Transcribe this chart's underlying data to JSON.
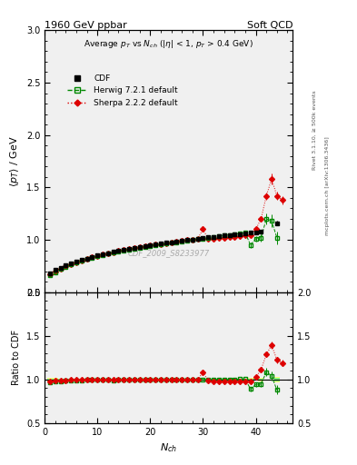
{
  "title_left": "1960 GeV ppbar",
  "title_right": "Soft QCD",
  "plot_title": "Average $p_T$ vs $N_{ch}$ ($|\\eta|$ < 1, $p_T$ > 0.4 GeV)",
  "xlabel": "$N_{ch}$",
  "ylabel_main": "$\\langle p_T \\rangle$ / GeV",
  "ylabel_ratio": "Ratio to CDF",
  "watermark": "CDF_2009_S8233977",
  "right_label1": "Rivet 3.1.10, ≥ 500k events",
  "right_label2": "mcplots.cern.ch [arXiv:1306.3436]",
  "xlim": [
    0,
    47
  ],
  "ylim_main": [
    0.5,
    3.0
  ],
  "ylim_ratio": [
    0.5,
    2.0
  ],
  "xticks": [
    0,
    10,
    20,
    30,
    40
  ],
  "yticks_main": [
    0.5,
    1.0,
    1.5,
    2.0,
    2.5,
    3.0
  ],
  "yticks_ratio": [
    0.5,
    1.0,
    1.5,
    2.0
  ],
  "cdf_x": [
    1,
    2,
    3,
    4,
    5,
    6,
    7,
    8,
    9,
    10,
    11,
    12,
    13,
    14,
    15,
    16,
    17,
    18,
    19,
    20,
    21,
    22,
    23,
    24,
    25,
    26,
    27,
    28,
    29,
    30,
    31,
    32,
    33,
    34,
    35,
    36,
    37,
    38,
    39,
    40,
    41,
    44
  ],
  "cdf_y": [
    0.683,
    0.71,
    0.733,
    0.754,
    0.773,
    0.791,
    0.807,
    0.822,
    0.836,
    0.849,
    0.861,
    0.873,
    0.884,
    0.894,
    0.904,
    0.913,
    0.922,
    0.931,
    0.939,
    0.947,
    0.955,
    0.963,
    0.97,
    0.977,
    0.984,
    0.991,
    0.998,
    1.004,
    1.01,
    1.016,
    1.022,
    1.028,
    1.034,
    1.04,
    1.045,
    1.051,
    1.056,
    1.062,
    1.067,
    1.072,
    1.077,
    1.16
  ],
  "cdf_yerr": [
    0.008,
    0.006,
    0.005,
    0.004,
    0.004,
    0.003,
    0.003,
    0.003,
    0.003,
    0.003,
    0.003,
    0.003,
    0.003,
    0.003,
    0.003,
    0.003,
    0.003,
    0.003,
    0.003,
    0.003,
    0.003,
    0.003,
    0.003,
    0.003,
    0.003,
    0.003,
    0.003,
    0.003,
    0.004,
    0.004,
    0.004,
    0.004,
    0.004,
    0.005,
    0.005,
    0.006,
    0.006,
    0.007,
    0.008,
    0.009,
    0.01,
    0.02
  ],
  "herwig_x": [
    1,
    2,
    3,
    4,
    5,
    6,
    7,
    8,
    9,
    10,
    11,
    12,
    13,
    14,
    15,
    16,
    17,
    18,
    19,
    20,
    21,
    22,
    23,
    24,
    25,
    26,
    27,
    28,
    29,
    30,
    31,
    32,
    33,
    34,
    35,
    36,
    37,
    38,
    39,
    40,
    41,
    42,
    43,
    44
  ],
  "herwig_y": [
    0.658,
    0.692,
    0.72,
    0.744,
    0.765,
    0.784,
    0.801,
    0.817,
    0.831,
    0.844,
    0.856,
    0.868,
    0.878,
    0.889,
    0.898,
    0.908,
    0.917,
    0.925,
    0.933,
    0.941,
    0.949,
    0.957,
    0.964,
    0.971,
    0.978,
    0.985,
    0.992,
    0.999,
    1.006,
    1.013,
    1.02,
    1.027,
    1.034,
    1.04,
    1.047,
    1.054,
    1.06,
    1.067,
    0.95,
    1.01,
    1.02,
    1.2,
    1.18,
    1.02
  ],
  "herwig_yerr": [
    0.012,
    0.009,
    0.007,
    0.006,
    0.005,
    0.005,
    0.005,
    0.004,
    0.004,
    0.004,
    0.004,
    0.004,
    0.004,
    0.004,
    0.004,
    0.004,
    0.004,
    0.004,
    0.004,
    0.004,
    0.004,
    0.004,
    0.004,
    0.004,
    0.004,
    0.004,
    0.004,
    0.004,
    0.004,
    0.005,
    0.005,
    0.005,
    0.005,
    0.006,
    0.007,
    0.007,
    0.008,
    0.009,
    0.025,
    0.025,
    0.035,
    0.055,
    0.06,
    0.06
  ],
  "sherpa_x": [
    1,
    2,
    3,
    4,
    5,
    6,
    7,
    8,
    9,
    10,
    11,
    12,
    13,
    14,
    15,
    16,
    17,
    18,
    19,
    20,
    21,
    22,
    23,
    24,
    25,
    26,
    27,
    28,
    29,
    30,
    31,
    32,
    33,
    34,
    35,
    36,
    37,
    38,
    39,
    40,
    41,
    42,
    43,
    44,
    45
  ],
  "sherpa_y": [
    0.67,
    0.7,
    0.725,
    0.748,
    0.769,
    0.787,
    0.804,
    0.82,
    0.834,
    0.847,
    0.86,
    0.871,
    0.882,
    0.892,
    0.902,
    0.911,
    0.92,
    0.929,
    0.937,
    0.945,
    0.953,
    0.96,
    0.968,
    0.975,
    0.982,
    0.989,
    0.996,
    1.003,
    1.01,
    1.1,
    1.005,
    1.01,
    1.015,
    1.02,
    1.025,
    1.03,
    1.035,
    1.04,
    1.045,
    1.1,
    1.2,
    1.42,
    1.58,
    1.42,
    1.38
  ],
  "sherpa_yerr": [
    0.01,
    0.008,
    0.007,
    0.006,
    0.005,
    0.005,
    0.005,
    0.004,
    0.004,
    0.004,
    0.004,
    0.004,
    0.004,
    0.004,
    0.004,
    0.004,
    0.004,
    0.004,
    0.004,
    0.004,
    0.004,
    0.004,
    0.004,
    0.004,
    0.004,
    0.004,
    0.004,
    0.004,
    0.005,
    0.015,
    0.005,
    0.005,
    0.005,
    0.005,
    0.005,
    0.006,
    0.006,
    0.006,
    0.007,
    0.012,
    0.02,
    0.035,
    0.05,
    0.04,
    0.04
  ],
  "cdf_color": "#000000",
  "herwig_color": "#008800",
  "sherpa_color": "#dd0000",
  "bg_color": "#f0f0f0",
  "band_yellow": "#ffff80",
  "band_green": "#80ff80"
}
